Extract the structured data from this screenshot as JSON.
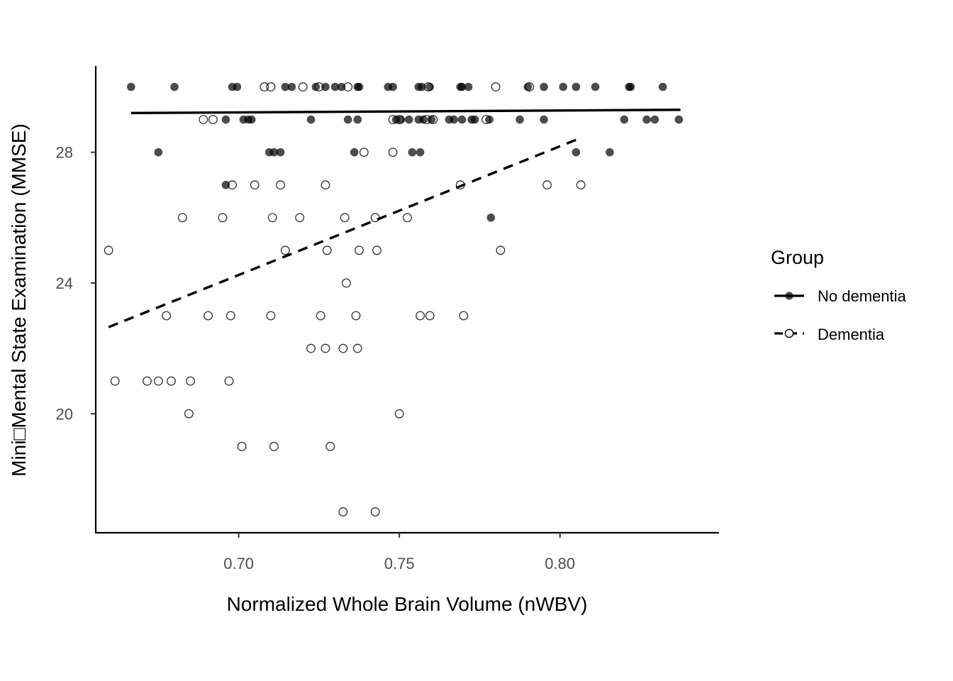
{
  "chart_data": {
    "type": "scatter",
    "title": "",
    "xlabel": "Normalized Whole Brain Volume (nWBV)",
    "ylabel": "Mini□Mental State Examination (MMSE)",
    "xlim": [
      0.6555,
      0.8495
    ],
    "ylim": [
      16.36,
      30.64
    ],
    "x_ticks": [
      0.7,
      0.75,
      0.8
    ],
    "x_tick_labels": [
      "0.70",
      "0.75",
      "0.80"
    ],
    "y_ticks": [
      20,
      24,
      28
    ],
    "y_tick_labels": [
      "20",
      "24",
      "28"
    ],
    "grid": false,
    "legend": {
      "title": "Group",
      "placement": "right",
      "entries": [
        "No dementia",
        "Dementia"
      ]
    },
    "series": [
      {
        "name": "No dementia",
        "marker": "filled-circle",
        "line": "solid",
        "fit": {
          "x": [
            0.6665,
            0.8375
          ],
          "y": [
            29.2,
            29.3
          ]
        },
        "points": [
          [
            0.6665,
            30
          ],
          [
            0.68,
            30
          ],
          [
            0.698,
            30
          ],
          [
            0.6995,
            30
          ],
          [
            0.7145,
            30
          ],
          [
            0.7165,
            30
          ],
          [
            0.724,
            30
          ],
          [
            0.727,
            30
          ],
          [
            0.73,
            30
          ],
          [
            0.732,
            30
          ],
          [
            0.737,
            30
          ],
          [
            0.7375,
            30
          ],
          [
            0.7465,
            30
          ],
          [
            0.748,
            30
          ],
          [
            0.756,
            30
          ],
          [
            0.757,
            30
          ],
          [
            0.7595,
            30
          ],
          [
            0.769,
            30
          ],
          [
            0.7695,
            30
          ],
          [
            0.7715,
            30
          ],
          [
            0.79,
            30
          ],
          [
            0.795,
            30
          ],
          [
            0.801,
            30
          ],
          [
            0.805,
            30
          ],
          [
            0.811,
            30
          ],
          [
            0.8215,
            30
          ],
          [
            0.822,
            30
          ],
          [
            0.832,
            30
          ],
          [
            0.696,
            29
          ],
          [
            0.7015,
            29
          ],
          [
            0.703,
            29
          ],
          [
            0.704,
            29
          ],
          [
            0.7225,
            29
          ],
          [
            0.734,
            29
          ],
          [
            0.737,
            29
          ],
          [
            0.749,
            29
          ],
          [
            0.7505,
            29
          ],
          [
            0.753,
            29
          ],
          [
            0.756,
            29
          ],
          [
            0.7575,
            29
          ],
          [
            0.76,
            29
          ],
          [
            0.7655,
            29
          ],
          [
            0.767,
            29
          ],
          [
            0.7695,
            29
          ],
          [
            0.7725,
            29
          ],
          [
            0.7735,
            29
          ],
          [
            0.778,
            29
          ],
          [
            0.7875,
            29
          ],
          [
            0.795,
            29
          ],
          [
            0.82,
            29
          ],
          [
            0.827,
            29
          ],
          [
            0.8295,
            29
          ],
          [
            0.837,
            29
          ],
          [
            0.675,
            28
          ],
          [
            0.7095,
            28
          ],
          [
            0.711,
            28
          ],
          [
            0.713,
            28
          ],
          [
            0.736,
            28
          ],
          [
            0.754,
            28
          ],
          [
            0.7565,
            28
          ],
          [
            0.805,
            28
          ],
          [
            0.8155,
            28
          ],
          [
            0.696,
            27
          ],
          [
            0.7785,
            26
          ]
        ]
      },
      {
        "name": "Dementia",
        "marker": "open-circle",
        "line": "dashed",
        "fit": {
          "x": [
            0.6595,
            0.8055
          ],
          "y": [
            22.65,
            28.4
          ]
        },
        "points": [
          [
            0.708,
            30
          ],
          [
            0.71,
            30
          ],
          [
            0.72,
            30
          ],
          [
            0.725,
            30
          ],
          [
            0.734,
            30
          ],
          [
            0.759,
            30
          ],
          [
            0.78,
            30
          ],
          [
            0.7905,
            30
          ],
          [
            0.689,
            29
          ],
          [
            0.692,
            29
          ],
          [
            0.748,
            29
          ],
          [
            0.75,
            29
          ],
          [
            0.7585,
            29
          ],
          [
            0.7605,
            29
          ],
          [
            0.777,
            29
          ],
          [
            0.739,
            28
          ],
          [
            0.748,
            28
          ],
          [
            0.698,
            27
          ],
          [
            0.705,
            27
          ],
          [
            0.713,
            27
          ],
          [
            0.727,
            27
          ],
          [
            0.769,
            27
          ],
          [
            0.796,
            27
          ],
          [
            0.8065,
            27
          ],
          [
            0.6825,
            26
          ],
          [
            0.695,
            26
          ],
          [
            0.7105,
            26
          ],
          [
            0.719,
            26
          ],
          [
            0.733,
            26
          ],
          [
            0.7425,
            26
          ],
          [
            0.7525,
            26
          ],
          [
            0.6595,
            25
          ],
          [
            0.7145,
            25
          ],
          [
            0.7275,
            25
          ],
          [
            0.7375,
            25
          ],
          [
            0.743,
            25
          ],
          [
            0.7815,
            25
          ],
          [
            0.7335,
            24
          ],
          [
            0.6775,
            23
          ],
          [
            0.6905,
            23
          ],
          [
            0.6975,
            23
          ],
          [
            0.71,
            23
          ],
          [
            0.7255,
            23
          ],
          [
            0.7365,
            23
          ],
          [
            0.7565,
            23
          ],
          [
            0.7595,
            23
          ],
          [
            0.77,
            23
          ],
          [
            0.7225,
            22
          ],
          [
            0.727,
            22
          ],
          [
            0.7325,
            22
          ],
          [
            0.737,
            22
          ],
          [
            0.6615,
            21
          ],
          [
            0.6715,
            21
          ],
          [
            0.675,
            21
          ],
          [
            0.679,
            21
          ],
          [
            0.685,
            21
          ],
          [
            0.697,
            21
          ],
          [
            0.6845,
            20
          ],
          [
            0.75,
            20
          ],
          [
            0.701,
            19
          ],
          [
            0.711,
            19
          ],
          [
            0.7285,
            19
          ],
          [
            0.7325,
            17
          ],
          [
            0.7425,
            17
          ]
        ]
      }
    ]
  }
}
